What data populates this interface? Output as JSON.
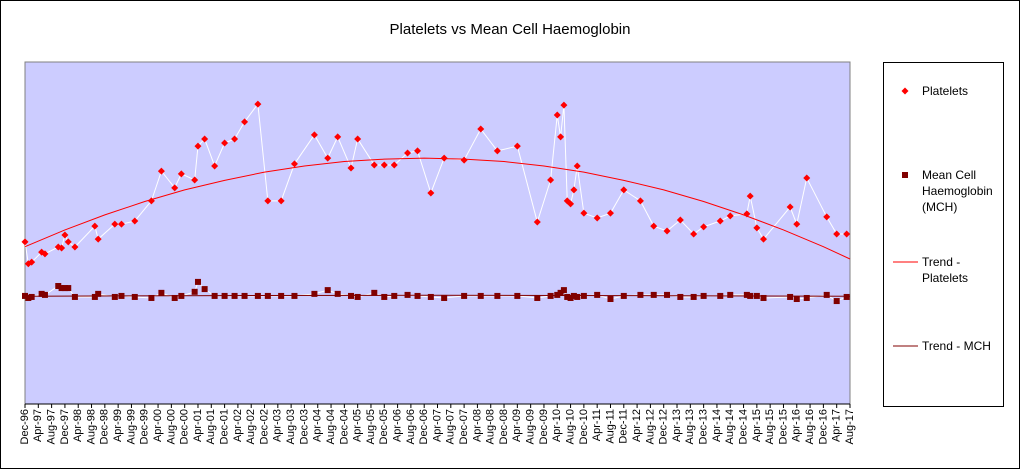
{
  "chart_data": {
    "type": "line",
    "title": "Platelets vs Mean Cell Haemoglobin",
    "xlim": [
      "1996-12",
      "2017-08"
    ],
    "ylim": [
      0,
      100
    ],
    "xticks": [
      {
        "value": "1996-12",
        "label": "Dec-96"
      },
      {
        "value": "1997-04",
        "label": "Apr-97"
      },
      {
        "value": "1997-08",
        "label": "Aug-97"
      },
      {
        "value": "1997-12",
        "label": "Dec-97"
      },
      {
        "value": "1998-04",
        "label": "Apr-98"
      },
      {
        "value": "1998-08",
        "label": "Aug-98"
      },
      {
        "value": "1998-12",
        "label": "Dec-98"
      },
      {
        "value": "1999-04",
        "label": "Apr-99"
      },
      {
        "value": "1999-08",
        "label": "Aug-99"
      },
      {
        "value": "1999-12",
        "label": "Dec-99"
      },
      {
        "value": "2000-04",
        "label": "Apr-00"
      },
      {
        "value": "2000-08",
        "label": "Aug-00"
      },
      {
        "value": "2000-12",
        "label": "Dec-00"
      },
      {
        "value": "2001-04",
        "label": "Apr-01"
      },
      {
        "value": "2001-08",
        "label": "Aug-01"
      },
      {
        "value": "2001-12",
        "label": "Dec-01"
      },
      {
        "value": "2002-04",
        "label": "Apr-02"
      },
      {
        "value": "2002-08",
        "label": "Aug-02"
      },
      {
        "value": "2002-12",
        "label": "Dec-02"
      },
      {
        "value": "2003-04",
        "label": "Apr-03"
      },
      {
        "value": "2003-08",
        "label": "Aug-03"
      },
      {
        "value": "2003-12",
        "label": "Dec-03"
      },
      {
        "value": "2004-04",
        "label": "Apr-04"
      },
      {
        "value": "2004-08",
        "label": "Aug-04"
      },
      {
        "value": "2004-12",
        "label": "Dec-04"
      },
      {
        "value": "2005-04",
        "label": "Apr-05"
      },
      {
        "value": "2005-08",
        "label": "Aug-05"
      },
      {
        "value": "2005-12",
        "label": "Dec-05"
      },
      {
        "value": "2006-04",
        "label": "Apr-06"
      },
      {
        "value": "2006-08",
        "label": "Aug-06"
      },
      {
        "value": "2006-12",
        "label": "Dec-06"
      },
      {
        "value": "2007-04",
        "label": "Apr-07"
      },
      {
        "value": "2007-08",
        "label": "Aug-07"
      },
      {
        "value": "2007-12",
        "label": "Dec-07"
      },
      {
        "value": "2008-04",
        "label": "Apr-08"
      },
      {
        "value": "2008-08",
        "label": "Aug-08"
      },
      {
        "value": "2008-12",
        "label": "Dec-08"
      },
      {
        "value": "2009-04",
        "label": "Apr-09"
      },
      {
        "value": "2009-08",
        "label": "Aug-09"
      },
      {
        "value": "2009-12",
        "label": "Dec-09"
      },
      {
        "value": "2010-04",
        "label": "Apr-10"
      },
      {
        "value": "2010-08",
        "label": "Aug-10"
      },
      {
        "value": "2010-12",
        "label": "Dec-10"
      },
      {
        "value": "2011-04",
        "label": "Apr-11"
      },
      {
        "value": "2011-08",
        "label": "Aug-11"
      },
      {
        "value": "2011-12",
        "label": "Dec-11"
      },
      {
        "value": "2012-04",
        "label": "Apr-12"
      },
      {
        "value": "2012-08",
        "label": "Aug-12"
      },
      {
        "value": "2012-12",
        "label": "Dec-12"
      },
      {
        "value": "2013-04",
        "label": "Apr-13"
      },
      {
        "value": "2013-08",
        "label": "Aug-13"
      },
      {
        "value": "2013-12",
        "label": "Dec-13"
      },
      {
        "value": "2014-04",
        "label": "Apr-14"
      },
      {
        "value": "2014-08",
        "label": "Aug-14"
      },
      {
        "value": "2014-12",
        "label": "Dec-14"
      },
      {
        "value": "2015-04",
        "label": "Apr-15"
      },
      {
        "value": "2015-08",
        "label": "Aug-15"
      },
      {
        "value": "2015-12",
        "label": "Dec-15"
      },
      {
        "value": "2016-04",
        "label": "Apr-16"
      },
      {
        "value": "2016-08",
        "label": "Aug-16"
      },
      {
        "value": "2016-12",
        "label": "Dec-16"
      },
      {
        "value": "2017-04",
        "label": "Apr-17"
      },
      {
        "value": "2017-08",
        "label": "Aug-17"
      }
    ],
    "plot_background": "#ccccff",
    "series": [
      {
        "name": "Platelets",
        "color": "#ff0000",
        "marker": "diamond",
        "line_color": "#ffffff",
        "x": [
          "1996-12",
          "1997-01",
          "1997-02",
          "1997-05",
          "1997-06",
          "1997-10",
          "1997-11",
          "1997-12",
          "1998-01",
          "1998-03",
          "1998-09",
          "1998-10",
          "1999-03",
          "1999-05",
          "1999-09",
          "2000-02",
          "2000-05",
          "2000-09",
          "2000-11",
          "2001-03",
          "2001-04",
          "2001-06",
          "2001-09",
          "2001-12",
          "2002-03",
          "2002-06",
          "2002-10",
          "2003-01",
          "2003-05",
          "2003-09",
          "2004-03",
          "2004-07",
          "2004-10",
          "2005-02",
          "2005-04",
          "2005-09",
          "2005-12",
          "2006-03",
          "2006-07",
          "2006-10",
          "2007-02",
          "2007-06",
          "2007-12",
          "2008-05",
          "2008-10",
          "2009-04",
          "2009-10",
          "2010-02",
          "2010-04",
          "2010-05",
          "2010-06",
          "2010-07",
          "2010-08",
          "2010-09",
          "2010-10",
          "2010-12",
          "2011-04",
          "2011-08",
          "2011-12",
          "2012-05",
          "2012-09",
          "2013-01",
          "2013-05",
          "2013-09",
          "2013-12",
          "2014-05",
          "2014-08",
          "2015-01",
          "2015-02",
          "2015-04",
          "2015-06",
          "2016-02",
          "2016-04",
          "2016-07",
          "2017-01",
          "2017-04",
          "2017-07"
        ],
        "values": [
          47.4,
          41,
          41.5,
          44.4,
          43.9,
          45.9,
          45.6,
          49.4,
          47.4,
          45.9,
          52,
          48.2,
          52.6,
          52.6,
          53.5,
          59.4,
          68.1,
          63.2,
          67.3,
          65.5,
          75.4,
          77.5,
          69.6,
          76.3,
          77.5,
          82.5,
          87.7,
          59.4,
          59.4,
          70.2,
          78.7,
          71.9,
          78.1,
          69,
          77.5,
          69.9,
          69.9,
          69.9,
          73.4,
          74,
          61.7,
          71.9,
          71.3,
          80.4,
          74,
          75.4,
          53.2,
          65.5,
          84.5,
          78.1,
          87.4,
          59.4,
          58.5,
          62.6,
          69.6,
          55.8,
          54.4,
          55.8,
          62.6,
          59.4,
          52,
          50.6,
          53.8,
          49.7,
          51.8,
          53.5,
          55,
          55.6,
          60.8,
          51.5,
          48.2,
          57.6,
          52.6,
          66.1,
          54.7,
          49.7,
          49.7
        ]
      },
      {
        "name": "Mean Cell Haemoglobin (MCH)",
        "color": "#800000",
        "marker": "square",
        "line_color": "#ffffff",
        "x": [
          "1996-12",
          "1997-01",
          "1997-02",
          "1997-05",
          "1997-06",
          "1997-10",
          "1997-11",
          "1997-12",
          "1998-01",
          "1998-03",
          "1998-09",
          "1998-10",
          "1999-03",
          "1999-05",
          "1999-09",
          "2000-02",
          "2000-05",
          "2000-09",
          "2000-11",
          "2001-03",
          "2001-04",
          "2001-06",
          "2001-09",
          "2001-12",
          "2002-03",
          "2002-06",
          "2002-10",
          "2003-01",
          "2003-05",
          "2003-09",
          "2004-03",
          "2004-07",
          "2004-10",
          "2005-02",
          "2005-04",
          "2005-09",
          "2005-12",
          "2006-03",
          "2006-07",
          "2006-10",
          "2007-02",
          "2007-06",
          "2007-12",
          "2008-05",
          "2008-10",
          "2009-04",
          "2009-10",
          "2010-02",
          "2010-04",
          "2010-05",
          "2010-06",
          "2010-07",
          "2010-08",
          "2010-09",
          "2010-10",
          "2010-12",
          "2011-04",
          "2011-08",
          "2011-12",
          "2012-05",
          "2012-09",
          "2013-01",
          "2013-05",
          "2013-09",
          "2013-12",
          "2014-05",
          "2014-08",
          "2015-01",
          "2015-02",
          "2015-04",
          "2015-06",
          "2016-02",
          "2016-04",
          "2016-07",
          "2017-01",
          "2017-04",
          "2017-07"
        ],
        "values": [
          31.6,
          31,
          31.3,
          32.2,
          31.9,
          34.5,
          33.9,
          33.9,
          33.9,
          31.3,
          31.3,
          32.2,
          31.3,
          31.6,
          31.3,
          31,
          32.5,
          31,
          31.6,
          32.8,
          35.7,
          33.6,
          31.6,
          31.6,
          31.6,
          31.6,
          31.6,
          31.6,
          31.6,
          31.6,
          32.2,
          33.3,
          32.2,
          31.6,
          31.3,
          32.5,
          31.3,
          31.6,
          31.9,
          31.6,
          31.3,
          31,
          31.6,
          31.6,
          31.6,
          31.6,
          31,
          31.6,
          31.9,
          32.5,
          33.3,
          31.3,
          31,
          31.6,
          31.3,
          31.6,
          31.9,
          30.7,
          31.6,
          31.9,
          31.9,
          31.9,
          31.3,
          31.3,
          31.6,
          31.6,
          31.9,
          31.9,
          31.6,
          31.6,
          31,
          31.3,
          30.7,
          31,
          31.9,
          30.1,
          31.3
        ]
      },
      {
        "name": "Trend - Platelets",
        "color": "#ff0000",
        "marker": "none",
        "line_color": "#ff0000",
        "x": [
          "1996-12",
          "1997-12",
          "1998-12",
          "1999-12",
          "2000-12",
          "2001-12",
          "2002-12",
          "2003-12",
          "2004-12",
          "2005-12",
          "2006-12",
          "2007-12",
          "2008-12",
          "2009-12",
          "2010-12",
          "2011-12",
          "2012-12",
          "2013-12",
          "2014-12",
          "2015-12",
          "2016-12",
          "2017-08"
        ],
        "values": [
          46,
          50.9,
          55.3,
          59.2,
          62.6,
          65.4,
          67.8,
          69.6,
          70.9,
          71.6,
          71.9,
          71.6,
          70.9,
          69.6,
          67.8,
          65.4,
          62.6,
          59.2,
          55.3,
          50.9,
          46,
          42.4
        ]
      },
      {
        "name": "Trend - MCH",
        "color": "#800000",
        "marker": "none",
        "line_color": "#800000",
        "x": [
          "1996-12",
          "2001-12",
          "2006-12",
          "2011-12",
          "2017-08"
        ],
        "values": [
          31.5,
          31.7,
          31.8,
          31.7,
          31.5
        ]
      }
    ]
  }
}
